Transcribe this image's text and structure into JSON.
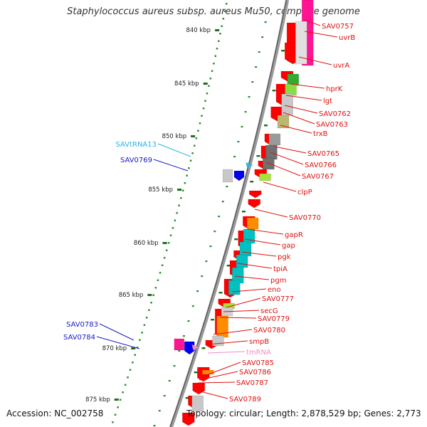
{
  "title": "Staphylococcus aureus subsp. aureus Mu50, complete genome",
  "accession": "Accession: NC_002758",
  "topology": "Topology: circular; Length: 2,878,529 bp; Genes: 2,773",
  "colors": {
    "backbone": "#8c8c8c",
    "tick_minor": "#2f8f2f",
    "tick_major": "#1e6e1e",
    "reverse_label": "#e01010",
    "forward_label": "#1a1ac8",
    "trna_label": "#28b4e6",
    "tmrna_label": "#f08cc8",
    "leader": "#e01010"
  },
  "scale_labels": [
    "840 kbp",
    "845 kbp",
    "850 kbp",
    "855 kbp",
    "860 kbp",
    "865 kbp",
    "870 kbp",
    "875 kbp"
  ],
  "reverse_genes": [
    "SAV0757",
    "uvrB",
    "uvrA",
    "hprK",
    "lgt",
    "SAV0762",
    "SAV0763",
    "trxB",
    "SAV0765",
    "SAV0766",
    "SAV0767",
    "clpP",
    "SAV0770",
    "gapR",
    "gap",
    "pgk",
    "tpiA",
    "pgm",
    "eno",
    "SAV0777",
    "secG",
    "SAV0779",
    "SAV0780",
    "smpB",
    "SAV0785",
    "SAV0786",
    "SAV0787",
    "SAV0789"
  ],
  "forward_genes": [
    "SAV0769",
    "SAV0783",
    "SAV0784"
  ],
  "trna_genes": [
    "SAVtRNA13"
  ],
  "tmrna_genes": [
    "tmRNA"
  ]
}
